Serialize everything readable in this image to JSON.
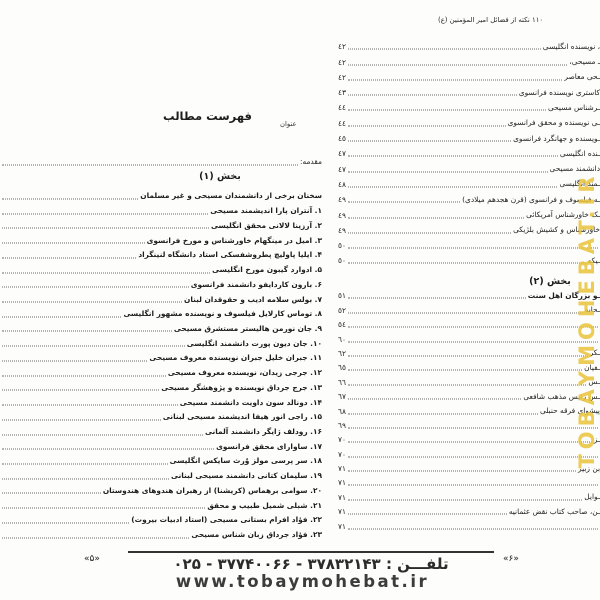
{
  "left_page": {
    "title": "فهرست مطالب",
    "column_label": "عنوان",
    "intro_label": "مقدمه:",
    "section1": {
      "heading": "بخش (۱)",
      "subheading": "سخنان برخی از دانشمندان مسیحی و غیر مسلمان",
      "items": [
        "۱. آنتران پارا اندیشمند مسیحی",
        "۲. آرزینا لالانی محقق انگلیسی",
        "۳. امیل در مینگهام خاورشناس و مورخ فرانسوی",
        "۴. ایلیا پاولیچ پطروشفسکی استاد دانشگاه لنینگراد",
        "۵. ادوارد گیبون مورخ انگلیسی",
        "۶. بارون کاردایفو دانشمند فرانسوی",
        "۷. بولس سلامه ادیب و حقوقدان لبنان",
        "۸. توماس کارلایل فیلسوف و نویسنده مشهور انگلیسی",
        "۹. جان نورمن هالیستر مستشرق مسیحی",
        "۱۰. جان دیون پورت دانشمند انگلیسی",
        "۱۱. جبران خلیل جبران نویسنده معروف مسیحی",
        "۱۲. جرجی زیدان، نویسنده معروف مسیحی",
        "۱۳. جرج جرداق نویسنده و پژوهشگر مسیحی",
        "۱۴. دونالد سون داویت دانشمند مسیحی",
        "۱۵. راجی انور هیفا اندیشمند مسیحی لبنانی",
        "۱۶. رودلف ژایگر دانشمند آلمانی",
        "۱۷. ساوارای محقق فرانسوی",
        "۱۸. سر پرسی مولز وُرث سایکس انگلیسی",
        "۱۹. سلیمان کتانی دانشمند مسیحی لبنانی",
        "۲۰. سوامی برهماس (کریشنا) از رهبران هندوهای هندوستان",
        "۲۱. شبلی شمیل طبیب و محقق",
        "۲۲. فؤاد افرام بستانی مسیحی (استاد ادبیات بیروت)",
        "۲۳. فؤاد جرداق زبان شناس مسیحی"
      ]
    },
    "page_number": "«۵»"
  },
  "right_page": {
    "header": "۱۱۰ نکته از فضائل امیر المؤمنین (ع)",
    "part1_items": [
      {
        "text": "، نویسنده انگلیسی",
        "page": "٤٢"
      },
      {
        "text": "ـ مسیحی،",
        "page": "٤٢"
      },
      {
        "text": "ـحی معاصر",
        "page": "٤٢"
      },
      {
        "text": "کاستری نویسنده فرانسوی",
        "page": "٤٣"
      },
      {
        "text": "ـرشناس مسیحی",
        "page": "٤٤"
      },
      {
        "text": "ـی نویسنده و محقق فرانسوی",
        "page": "٤٤"
      },
      {
        "text": "ـویسنده و جهانگرد فرانسوی",
        "page": "٤٥"
      },
      {
        "text": "ـنده انگلیسی",
        "page": "٤٧"
      },
      {
        "text": "دانشمند مسیحی",
        "page": "٤٧"
      },
      {
        "text": "ـمند انگلیسی",
        "page": "٤٨"
      },
      {
        "text": "ـه فیلسوف و فرانسوی (قرن هجدهم میلادی)",
        "page": "٤٩"
      },
      {
        "text": "ـک خاورشناس آمریکائی",
        "page": "٤٩"
      },
      {
        "text": "خاورشناس و کشیش بلژیکی",
        "page": "٤٩"
      },
      {
        "text": "",
        "page": "٥٠"
      },
      {
        "text": "ـیکه",
        "page": "٥٠"
      }
    ],
    "section2": {
      "heading": "بخش (۲)"
    },
    "part2_items": [
      {
        "text": "ـو بزرگان اهل سنت",
        "page": "٥١",
        "bold": true
      },
      {
        "text": "ـحابه",
        "page": "٥٢"
      },
      {
        "text": "",
        "page": "٥٤"
      },
      {
        "text": "",
        "page": "٦٠"
      },
      {
        "text": "ـکر",
        "page": "٦٢"
      },
      {
        "text": "ـفیان",
        "page": "٦٥"
      },
      {
        "text": "ـس",
        "page": "٦٦"
      },
      {
        "text": "ـس رئیس مذهب شافعی",
        "page": "٦٧"
      },
      {
        "text": "پیشوای فرقه حنبلی",
        "page": "٦٨"
      },
      {
        "text": "",
        "page": "٦٩"
      },
      {
        "text": "ـز",
        "page": "٧٠"
      },
      {
        "text": "",
        "page": "٧٠"
      },
      {
        "text": "بن زبیر",
        "page": "٧١"
      },
      {
        "text": "",
        "page": "٧١"
      },
      {
        "text": "ـوایل",
        "page": "٧١"
      },
      {
        "text": "ـن، صاحب کتاب نقض عثمانیه",
        "page": "٧١"
      },
      {
        "text": "",
        "page": "٧١"
      }
    ],
    "page_number": "«۶»"
  },
  "footer": {
    "phone_line": "تلفـــن :  ۳۷۸۳۲۱۴۳ - ۳۷۷۴۰۰۶۶ - ۰۲۵",
    "website": "www.tobaymohebat.ir"
  },
  "watermark": {
    "vertical_text": "TOBAYMOHEBAT.IR",
    "color": "#e9c43f"
  }
}
